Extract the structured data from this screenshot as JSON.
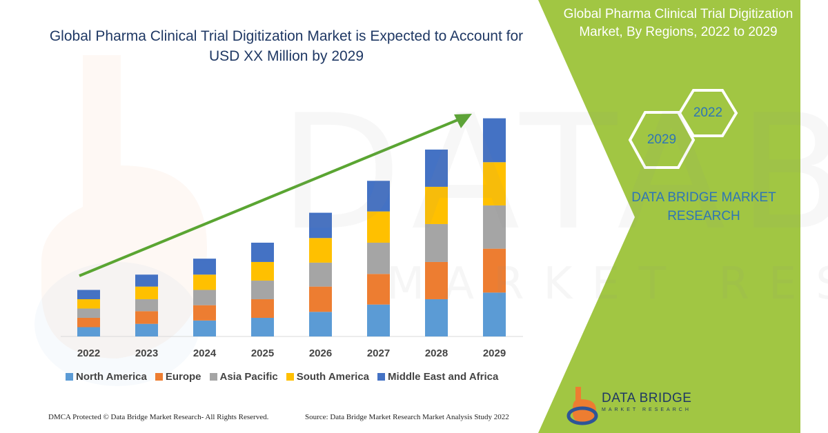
{
  "title": "Global Pharma Clinical Trial Digitization Market is Expected to Account for USD XX Million by 2029",
  "side_panel": {
    "title": "Global Pharma Clinical Trial Digitization Market, By Regions, 2022 to 2029",
    "hex_start": "2022",
    "hex_end": "2029",
    "brand_text": "DATA BRIDGE MARKET RESEARCH",
    "panel_color": "#a1c643"
  },
  "watermark": {
    "big": "DATABRIDGE",
    "small": "MARKET RESEARCH"
  },
  "logo": {
    "name": "DATA BRIDGE",
    "sub": "MARKET RESEARCH",
    "icon": "data-bridge-logo-icon"
  },
  "footer": {
    "left": "DMCA Protected © Data Bridge Market Research- All Rights Reserved.",
    "right": "Source: Data Bridge Market Research Market Analysis Study 2022"
  },
  "chart_data": {
    "type": "bar",
    "stacked": true,
    "categories": [
      "2022",
      "2023",
      "2024",
      "2025",
      "2026",
      "2027",
      "2028",
      "2029"
    ],
    "series": [
      {
        "name": "North America",
        "color": "#5b9bd5",
        "values": [
          14,
          19,
          24,
          28,
          37,
          48,
          56,
          66
        ]
      },
      {
        "name": "Europe",
        "color": "#ed7d31",
        "values": [
          14,
          19,
          23,
          28,
          38,
          46,
          56,
          66
        ]
      },
      {
        "name": "Asia Pacific",
        "color": "#a5a5a5",
        "values": [
          14,
          18,
          23,
          28,
          36,
          47,
          57,
          65
        ]
      },
      {
        "name": "South America",
        "color": "#ffc000",
        "values": [
          14,
          19,
          23,
          28,
          37,
          47,
          56,
          65
        ]
      },
      {
        "name": "Middle East and Africa",
        "color": "#4472c4",
        "values": [
          14,
          18,
          24,
          29,
          38,
          46,
          56,
          66
        ]
      }
    ],
    "ylim": [
      0,
      340
    ],
    "legend": "bottom",
    "grid": false,
    "trend_arrow_color": "#5aa532"
  }
}
